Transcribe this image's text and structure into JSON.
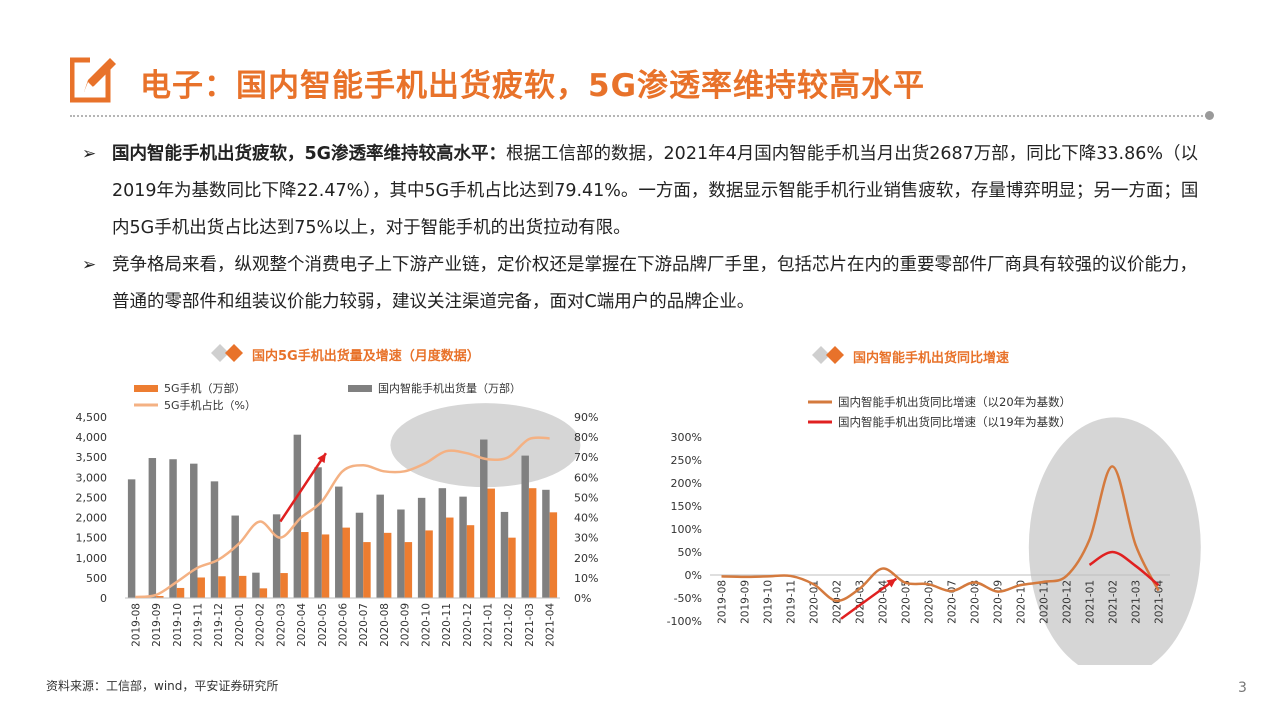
{
  "title": "电子：国内智能手机出货疲软，5G渗透率维持较高水平",
  "bullets": [
    {
      "bold": "国内智能手机出货疲软，5G渗透率维持较高水平：",
      "text": "根据工信部的数据，2021年4月国内智能手机当月出货2687万部，同比下降33.86%（以2019年为基数同比下降22.47%），其中5G手机占比达到79.41%。一方面，数据显示智能手机行业销售疲软，存量博弈明显；另一方面；国内5G手机出货占比达到75%以上，对于智能手机的出货拉动有限。"
    },
    {
      "bold": "",
      "text": "竞争格局来看，纵观整个消费电子上下游产业链，定价权还是掌握在下游品牌厂手里，包括芯片在内的重要零部件厂商具有较强的议价能力，普通的零部件和组装议价能力较弱，建议关注渠道完备，面对C端用户的品牌企业。"
    }
  ],
  "chart_data": [
    {
      "type": "bar",
      "title": "国内5G手机出货量及增速（月度数据）",
      "categories": [
        "2019-08",
        "2019-09",
        "2019-10",
        "2019-11",
        "2019-12",
        "2020-01",
        "2020-02",
        "2020-03",
        "2020-04",
        "2020-05",
        "2020-06",
        "2020-07",
        "2020-08",
        "2020-09",
        "2020-10",
        "2020-11",
        "2020-12",
        "2021-01",
        "2021-02",
        "2021-03",
        "2021-04"
      ],
      "series": [
        {
          "name": "5G手机（万部）",
          "kind": "bar",
          "axis": "left",
          "color": "#ed7d31",
          "values": [
            22,
            50,
            250,
            510,
            540,
            550,
            240,
            620,
            1640,
            1580,
            1750,
            1390,
            1620,
            1390,
            1680,
            2000,
            1810,
            2720,
            1500,
            2730,
            2130
          ]
        },
        {
          "name": "国内智能手机出货量（万部）",
          "kind": "bar",
          "axis": "left",
          "color": "#808080",
          "values": [
            2950,
            3480,
            3450,
            3340,
            2900,
            2050,
            630,
            2080,
            4060,
            3250,
            2770,
            2120,
            2570,
            2200,
            2490,
            2730,
            2520,
            3940,
            2140,
            3540,
            2690
          ]
        },
        {
          "name": "5G手机占比（%）",
          "kind": "line",
          "axis": "right",
          "color": "#f4b183",
          "values": [
            0.5,
            1.5,
            8,
            15,
            19,
            27,
            38,
            30,
            40,
            48,
            63,
            66,
            63,
            63,
            67,
            73,
            72,
            69,
            70,
            79,
            79.4
          ]
        }
      ],
      "ylim_left": [
        0,
        4500
      ],
      "yticks_left": [
        "0",
        "500",
        "1,000",
        "1,500",
        "2,000",
        "2,500",
        "3,000",
        "3,500",
        "4,000",
        "4,500"
      ],
      "ylim_right": [
        0,
        90
      ],
      "yticks_right": [
        "0%",
        "10%",
        "20%",
        "30%",
        "40%",
        "50%",
        "60%",
        "70%",
        "80%",
        "90%"
      ],
      "legend": "top",
      "grid": false
    },
    {
      "type": "line",
      "title": "国内智能手机出货同比增速",
      "categories": [
        "2019-08",
        "2019-09",
        "2019-10",
        "2019-11",
        "2020-01",
        "2020-02",
        "2020-03",
        "2020-04",
        "2020-05",
        "2020-06",
        "2020-07",
        "2020-08",
        "2020-09",
        "2020-10",
        "2020-11",
        "2020-12",
        "2021-01",
        "2021-02",
        "2021-03",
        "2021-04"
      ],
      "series": [
        {
          "name": "国内智能手机出货同比增速（以20年为基数）",
          "color": "#d47a3e",
          "values": [
            -3,
            -4,
            -3,
            -2,
            -20,
            -56,
            -30,
            14,
            -17,
            -20,
            -35,
            -16,
            -36,
            -22,
            -15,
            -2,
            77,
            236,
            66,
            -34
          ]
        },
        {
          "name": "国内智能手机出货同比增速（以19年为基数）",
          "color": "#e02020",
          "values": [
            null,
            null,
            null,
            null,
            null,
            null,
            null,
            null,
            null,
            null,
            null,
            null,
            null,
            null,
            null,
            null,
            22,
            50,
            20,
            -22
          ]
        }
      ],
      "ylim": [
        -100,
        300
      ],
      "yticks": [
        "-100%",
        "-50%",
        "0%",
        "50%",
        "100%",
        "150%",
        "200%",
        "250%",
        "300%"
      ],
      "legend": "top",
      "grid": false
    }
  ],
  "colors": {
    "accent": "#e8722a",
    "bar_orange": "#ed7d31",
    "bar_gray": "#808080",
    "line_light": "#f4b183",
    "highlight_gray": "#c8c8c8",
    "arrow_red": "#e02020"
  },
  "footnote": "资料来源：工信部，wind，平安证券研究所",
  "page_number": "3"
}
